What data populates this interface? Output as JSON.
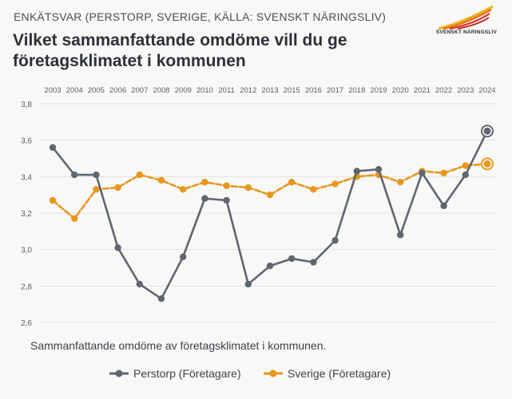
{
  "header": {
    "supertitle": "ENKÄTSVAR (PERSTORP, SVERIGE, KÄLLA: SVENSKT NÄRINGSLIV)",
    "title": "Vilket sammanfattande omdöme vill du ge företagsklimatet i kommunen",
    "logo_text": "SVENSKT NÄRINGSLIV"
  },
  "caption": "Sammanfattande omdöme av företagsklimatet i kommunen.",
  "colors": {
    "perstorp": "#5e6670",
    "sverige": "#e8961c",
    "grid": "#e2e2e0",
    "axis_text": "#5a5f66"
  },
  "chart_data": {
    "type": "line",
    "title": "Vilket sammanfattande omdöme vill du ge företagsklimatet i kommunen",
    "xlabel": "",
    "ylabel": "",
    "ylim": [
      2.6,
      3.8
    ],
    "yticks": [
      "2,6",
      "2,8",
      "3,0",
      "3,2",
      "3,4",
      "3,6",
      "3,8"
    ],
    "ytick_values": [
      2.6,
      2.8,
      3.0,
      3.2,
      3.4,
      3.6,
      3.8
    ],
    "categories": [
      "2003",
      "2004",
      "2005",
      "2006",
      "2007",
      "2008",
      "2009",
      "2010",
      "2011",
      "2012",
      "2013",
      "2015",
      "2016",
      "2017",
      "2018",
      "2019",
      "2020",
      "2021",
      "2022",
      "2023",
      "2024"
    ],
    "series": [
      {
        "name": "Perstorp (Företagare)",
        "values": [
          3.56,
          3.41,
          3.41,
          3.01,
          2.81,
          2.73,
          2.96,
          3.28,
          3.27,
          2.81,
          2.91,
          2.95,
          2.93,
          3.05,
          3.43,
          3.44,
          3.08,
          3.42,
          3.24,
          3.41,
          3.65
        ]
      },
      {
        "name": "Sverige (Företagare)",
        "values": [
          3.27,
          3.17,
          3.33,
          3.34,
          3.41,
          3.38,
          3.33,
          3.37,
          3.35,
          3.34,
          3.3,
          3.37,
          3.33,
          3.36,
          3.4,
          3.41,
          3.37,
          3.43,
          3.42,
          3.46,
          3.47
        ]
      }
    ],
    "legend": "bottom-center",
    "grid": true
  }
}
